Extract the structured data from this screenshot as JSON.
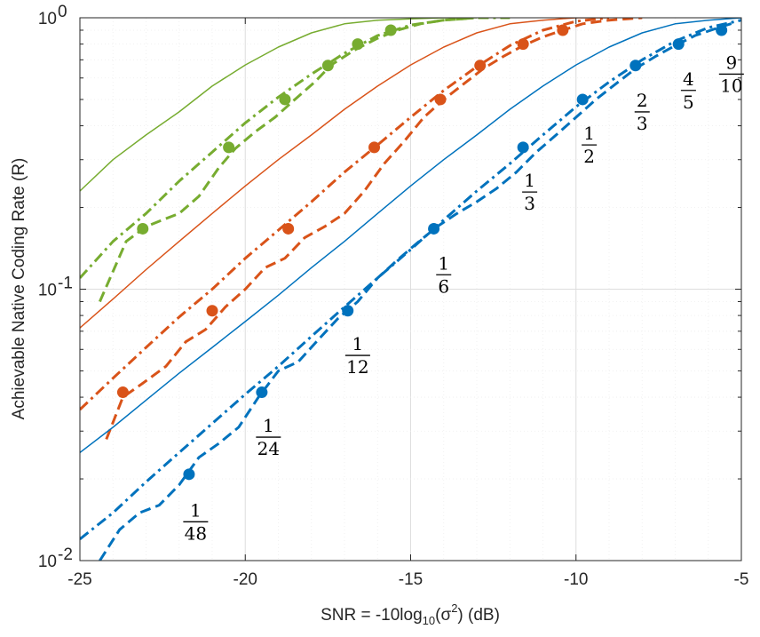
{
  "chart_data": {
    "type": "line",
    "x_scale": "linear",
    "y_scale": "log",
    "xlim": [
      -25,
      -5
    ],
    "ylim": [
      0.01,
      1
    ],
    "xticks": [
      -25,
      -20,
      -15,
      -10,
      -5
    ],
    "xtick_labels": [
      "-25",
      "-20",
      "-15",
      "-10",
      "-5"
    ],
    "ytick_labels": [
      {
        "value": 1,
        "base": "10",
        "exp": "0"
      },
      {
        "value": 0.1,
        "base": "10",
        "exp": "-1"
      },
      {
        "value": 0.01,
        "base": "10",
        "exp": "-2"
      }
    ],
    "xlabel": {
      "prefix": "SNR = -10log",
      "sub": "10",
      "mid": "(σ",
      "sup": "2",
      "suffix": ") (dB)"
    },
    "ylabel": "Achievable Native Coding Rate (R)",
    "grid": true,
    "legend": null,
    "colors": {
      "green": "#77ac30",
      "orange": "#d95319",
      "blue": "#0072bd"
    },
    "series": [
      {
        "name": "green-solid",
        "color": "green",
        "style": "solid",
        "x": [
          -25,
          -24,
          -23,
          -22,
          -21,
          -20,
          -19,
          -18,
          -17,
          -16,
          -15,
          -14,
          -13
        ],
        "y": [
          0.23,
          0.3,
          0.37,
          0.45,
          0.56,
          0.67,
          0.78,
          0.88,
          0.95,
          0.98,
          0.99,
          1.0,
          1.0
        ]
      },
      {
        "name": "green-dashdot",
        "color": "green",
        "style": "dashdot",
        "x": [
          -25,
          -24,
          -23,
          -22,
          -21,
          -20,
          -19,
          -18,
          -17,
          -16,
          -15,
          -14,
          -13,
          -12
        ],
        "y": [
          0.11,
          0.15,
          0.19,
          0.25,
          0.32,
          0.41,
          0.51,
          0.62,
          0.74,
          0.86,
          0.94,
          0.98,
          1.0,
          1.0
        ]
      },
      {
        "name": "green-dashed",
        "color": "green",
        "style": "dashed",
        "x": [
          -24.4,
          -23.6,
          -23.0,
          -22.5,
          -22.0,
          -21.4,
          -20.8,
          -20.3,
          -19.7,
          -19.1,
          -18.5,
          -17.9,
          -17.4,
          -16.7,
          -16.0,
          -15.4,
          -14.7,
          -14.0,
          -13.0
        ],
        "y": [
          0.09,
          0.15,
          0.17,
          0.18,
          0.19,
          0.22,
          0.28,
          0.33,
          0.38,
          0.43,
          0.5,
          0.58,
          0.67,
          0.76,
          0.84,
          0.9,
          0.95,
          0.98,
          1.0
        ]
      },
      {
        "name": "green-markers",
        "color": "green",
        "style": "markers",
        "x": [
          -23.1,
          -20.5,
          -18.8,
          -17.5,
          -16.6,
          -15.6
        ],
        "y": [
          0.167,
          0.333,
          0.5,
          0.667,
          0.8,
          0.9
        ]
      },
      {
        "name": "orange-solid",
        "color": "orange",
        "style": "solid",
        "x": [
          -25,
          -24,
          -23,
          -22,
          -21,
          -20,
          -19,
          -18,
          -17,
          -16,
          -15,
          -14,
          -13,
          -12,
          -11,
          -10,
          -9
        ],
        "y": [
          0.072,
          0.092,
          0.118,
          0.15,
          0.19,
          0.24,
          0.3,
          0.37,
          0.46,
          0.56,
          0.67,
          0.78,
          0.88,
          0.95,
          0.98,
          1.0,
          1.0
        ]
      },
      {
        "name": "orange-dashdot",
        "color": "orange",
        "style": "dashdot",
        "x": [
          -25,
          -24,
          -23,
          -22,
          -21,
          -20,
          -19,
          -18,
          -17,
          -16,
          -15,
          -14,
          -13,
          -12,
          -11,
          -10,
          -9
        ],
        "y": [
          0.036,
          0.047,
          0.061,
          0.079,
          0.1,
          0.13,
          0.165,
          0.21,
          0.27,
          0.34,
          0.43,
          0.54,
          0.66,
          0.79,
          0.9,
          0.97,
          1.0
        ]
      },
      {
        "name": "orange-dashed",
        "color": "orange",
        "style": "dashed",
        "x": [
          -24.2,
          -23.7,
          -23.1,
          -22.4,
          -21.8,
          -21.2,
          -20.6,
          -20.0,
          -19.4,
          -18.8,
          -18.2,
          -17.6,
          -17.0,
          -16.4,
          -15.8,
          -15.2,
          -14.6,
          -14.0,
          -13.4,
          -12.8,
          -12.2,
          -11.6,
          -11.0,
          -10.4,
          -9.8,
          -9.0,
          -8.0
        ],
        "y": [
          0.028,
          0.04,
          0.045,
          0.052,
          0.064,
          0.071,
          0.086,
          0.1,
          0.12,
          0.13,
          0.155,
          0.17,
          0.19,
          0.23,
          0.29,
          0.35,
          0.43,
          0.5,
          0.57,
          0.65,
          0.72,
          0.79,
          0.85,
          0.9,
          0.95,
          0.98,
          1.0
        ]
      },
      {
        "name": "orange-markers",
        "color": "orange",
        "style": "markers",
        "x": [
          -23.7,
          -21.0,
          -18.7,
          -16.1,
          -14.1,
          -12.9,
          -11.6,
          -10.4
        ],
        "y": [
          0.0417,
          0.0833,
          0.167,
          0.333,
          0.5,
          0.667,
          0.8,
          0.9
        ]
      },
      {
        "name": "blue-solid",
        "color": "blue",
        "style": "solid",
        "x": [
          -25,
          -24,
          -23,
          -22,
          -21,
          -20,
          -19,
          -18,
          -17,
          -16,
          -15,
          -14,
          -13,
          -12,
          -11,
          -10,
          -9,
          -8,
          -7,
          -6,
          -5
        ],
        "y": [
          0.025,
          0.031,
          0.039,
          0.049,
          0.061,
          0.076,
          0.095,
          0.12,
          0.15,
          0.19,
          0.24,
          0.3,
          0.37,
          0.46,
          0.56,
          0.67,
          0.78,
          0.88,
          0.95,
          0.98,
          1.0
        ]
      },
      {
        "name": "blue-dashdot",
        "color": "blue",
        "style": "dashdot",
        "x": [
          -25,
          -24,
          -23,
          -22,
          -21,
          -20,
          -19,
          -18,
          -17,
          -16,
          -15,
          -14,
          -13,
          -12,
          -11,
          -10,
          -9,
          -8,
          -7,
          -6,
          -5
        ],
        "y": [
          0.012,
          0.015,
          0.0195,
          0.025,
          0.032,
          0.041,
          0.052,
          0.067,
          0.086,
          0.11,
          0.14,
          0.18,
          0.23,
          0.29,
          0.37,
          0.47,
          0.58,
          0.7,
          0.82,
          0.92,
          0.98
        ]
      },
      {
        "name": "blue-dashed",
        "color": "blue",
        "style": "dashed",
        "x": [
          -24.4,
          -23.8,
          -23.2,
          -22.6,
          -22.0,
          -21.4,
          -20.8,
          -20.2,
          -19.6,
          -19.0,
          -18.4,
          -17.8,
          -17.2,
          -16.6,
          -16.0,
          -15.4,
          -14.8,
          -14.2,
          -13.6,
          -13.0,
          -12.4,
          -11.8,
          -11.2,
          -10.6,
          -10.0,
          -9.4,
          -8.8,
          -8.2,
          -7.6,
          -7.0,
          -6.4,
          -5.8,
          -5.2
        ],
        "y": [
          0.01,
          0.013,
          0.015,
          0.016,
          0.019,
          0.024,
          0.027,
          0.031,
          0.04,
          0.05,
          0.054,
          0.065,
          0.078,
          0.09,
          0.11,
          0.128,
          0.148,
          0.17,
          0.19,
          0.21,
          0.235,
          0.27,
          0.32,
          0.37,
          0.43,
          0.5,
          0.57,
          0.65,
          0.72,
          0.79,
          0.86,
          0.91,
          0.96
        ]
      },
      {
        "name": "blue-markers",
        "color": "blue",
        "style": "markers",
        "x": [
          -21.7,
          -19.5,
          -16.9,
          -14.3,
          -11.6,
          -9.8,
          -8.2,
          -6.9,
          -5.6
        ],
        "y": [
          0.0208,
          0.0417,
          0.0833,
          0.167,
          0.333,
          0.5,
          0.667,
          0.8,
          0.9
        ]
      }
    ],
    "annotations": [
      {
        "num": "1",
        "den": "48",
        "x": -21.5,
        "y": 0.0139
      },
      {
        "num": "1",
        "den": "24",
        "x": -19.3,
        "y": 0.0285
      },
      {
        "num": "1",
        "den": "12",
        "x": -16.6,
        "y": 0.057
      },
      {
        "num": "1",
        "den": "6",
        "x": -14.0,
        "y": 0.113
      },
      {
        "num": "1",
        "den": "3",
        "x": -11.4,
        "y": 0.228
      },
      {
        "num": "1",
        "den": "2",
        "x": -9.6,
        "y": 0.34
      },
      {
        "num": "2",
        "den": "3",
        "x": -8.0,
        "y": 0.45
      },
      {
        "num": "4",
        "den": "5",
        "x": -6.6,
        "y": 0.54
      },
      {
        "num": "9",
        "den": "10",
        "x": -5.3,
        "y": 0.62
      }
    ]
  }
}
